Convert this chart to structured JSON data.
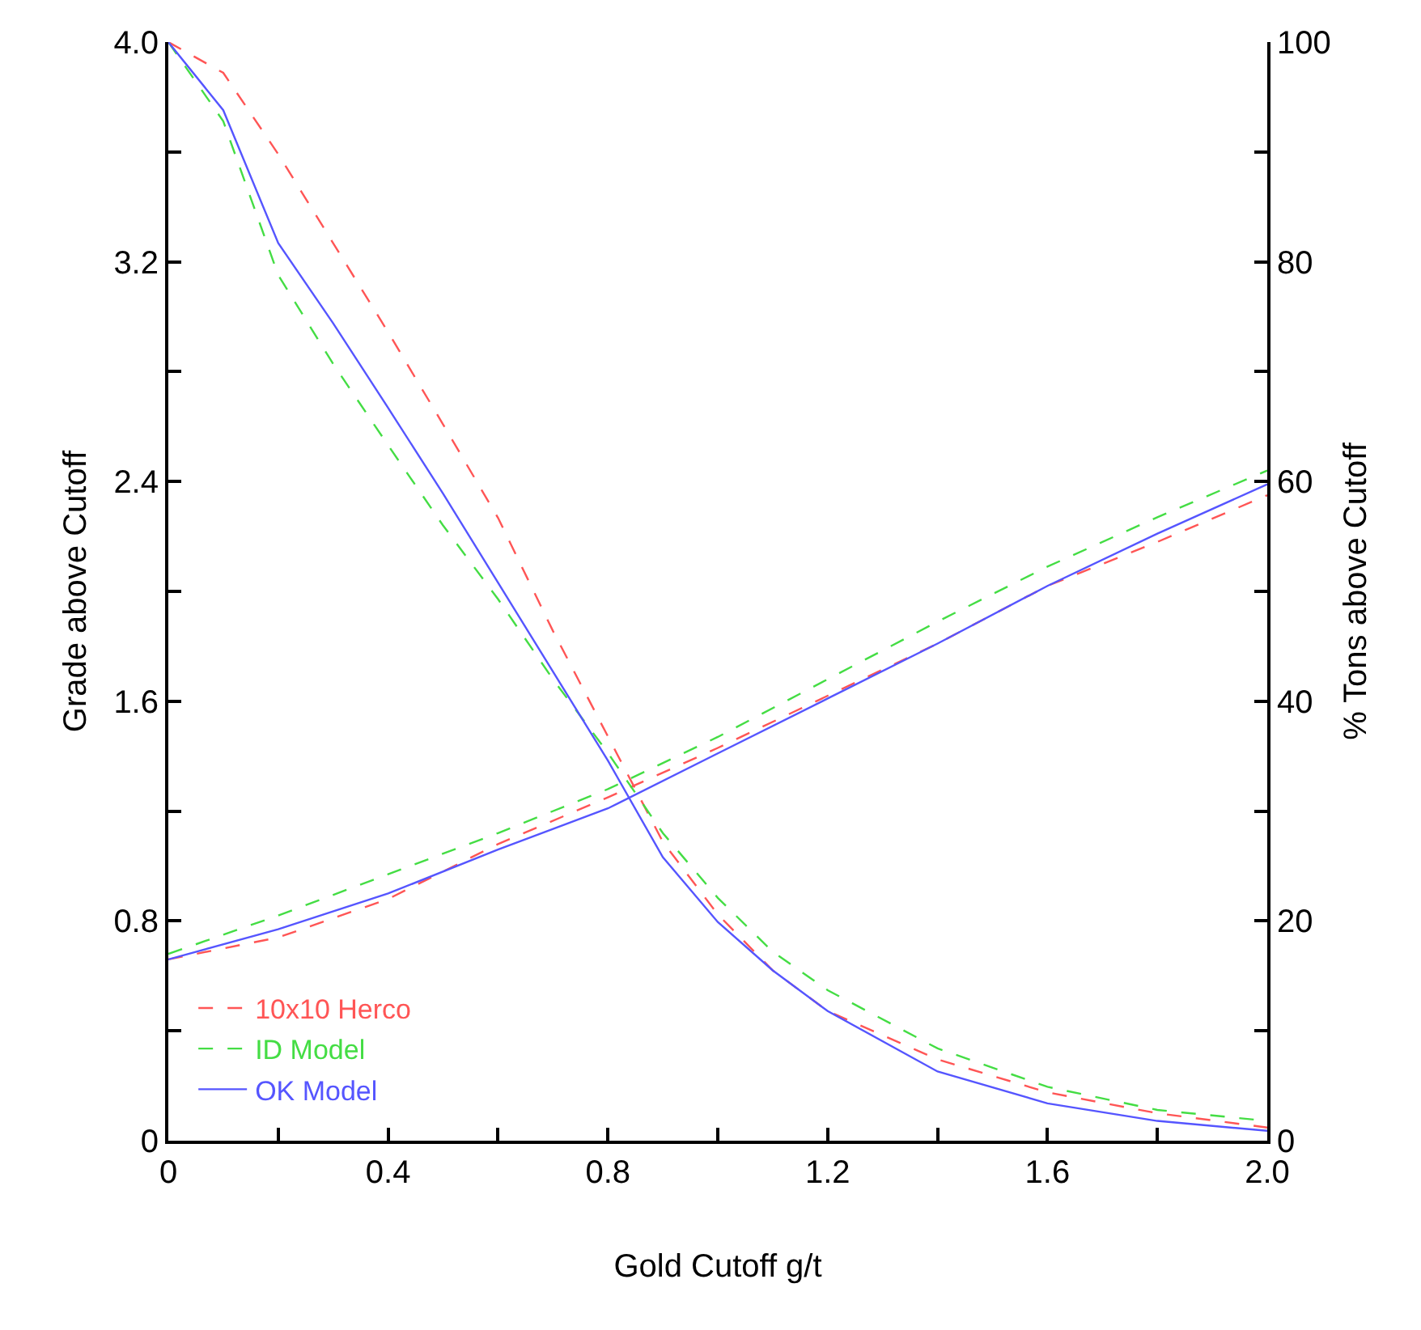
{
  "chart_data": {
    "type": "line",
    "xlabel": "Gold Cutoff g/t",
    "ylabel": "Grade above Cutoff",
    "y2label": "% Tons above Cutoff",
    "xlim": [
      0,
      2
    ],
    "xticks": [
      0,
      {
        "value": 0.2,
        "label": null
      },
      0.4,
      {
        "value": 0.6,
        "label": null
      },
      0.8,
      {
        "value": 1.0,
        "label": null
      },
      1.2,
      {
        "value": 1.4,
        "label": null
      },
      1.6,
      {
        "value": 1.8,
        "label": null
      },
      {
        "value": 2,
        "label": "2.0"
      }
    ],
    "ylim": [
      0,
      4
    ],
    "yticks": [
      0,
      {
        "value": 0.4,
        "label": null
      },
      0.8,
      {
        "value": 1.2,
        "label": null
      },
      1.6,
      {
        "value": 2.0,
        "label": null
      },
      2.4,
      {
        "value": 2.8,
        "label": null
      },
      3.2,
      {
        "value": 3.6,
        "label": null
      },
      {
        "value": 4,
        "label": "4.0"
      }
    ],
    "y2lim": [
      0,
      100
    ],
    "y2ticks": [
      0,
      {
        "value": 10,
        "label": null
      },
      20,
      {
        "value": 30,
        "label": null
      },
      40,
      {
        "value": 50,
        "label": null
      },
      60,
      {
        "value": 70,
        "label": null
      },
      80,
      {
        "value": 90,
        "label": null
      },
      100
    ],
    "grid": false,
    "legend": "bottom left",
    "marker": "none",
    "series": [
      {
        "name": "10x10 Herco",
        "color": "#ff5555",
        "line_style": "dashed",
        "x": [
          0,
          0.2,
          0.4,
          0.6,
          0.8,
          1.0,
          1.2,
          1.4,
          1.6,
          1.8,
          2.0
        ],
        "values": [
          0.66,
          0.74,
          0.88,
          1.08,
          1.25,
          1.43,
          1.62,
          1.81,
          2.02,
          2.18,
          2.35
        ]
      },
      {
        "name": "ID Model",
        "color": "#44dd44",
        "line_style": "dashed",
        "x": [
          0,
          0.2,
          0.4,
          0.6,
          0.8,
          1.0,
          1.2,
          1.4,
          1.6,
          1.8,
          2.0
        ],
        "values": [
          0.68,
          0.82,
          0.97,
          1.12,
          1.28,
          1.47,
          1.68,
          1.89,
          2.09,
          2.27,
          2.44
        ]
      },
      {
        "name": "OK Model",
        "color": "#5555ff",
        "line_style": "solid",
        "x": [
          0,
          0.2,
          0.4,
          0.6,
          0.8,
          1.0,
          1.2,
          1.4,
          1.6,
          1.8,
          2.0
        ],
        "values": [
          0.66,
          0.77,
          0.9,
          1.06,
          1.21,
          1.41,
          1.61,
          1.81,
          2.02,
          2.21,
          2.39
        ]
      },
      {
        "color": "#ff5555",
        "line_style": "dashed",
        "axis": "y2",
        "x": [
          0,
          0.1,
          0.2,
          0.3,
          0.4,
          0.5,
          0.6,
          0.7,
          0.8,
          0.9,
          1.0,
          1.1,
          1.2,
          1.4,
          1.6,
          1.8,
          2.0
        ],
        "values": [
          100,
          97.2,
          89.8,
          81.7,
          73.6,
          65.2,
          56.7,
          46.4,
          36.8,
          27.2,
          20.6,
          15.5,
          11.8,
          7.4,
          4.4,
          2.5,
          1.2
        ]
      },
      {
        "color": "#44dd44",
        "line_style": "dashed",
        "axis": "y2",
        "x": [
          0,
          0.1,
          0.2,
          0.3,
          0.4,
          0.5,
          0.6,
          0.7,
          0.8,
          0.9,
          1.0,
          1.1,
          1.2,
          1.4,
          1.6,
          1.8,
          2.0
        ],
        "values": [
          100,
          92.8,
          78.8,
          70.7,
          63.3,
          56.0,
          49.3,
          42.0,
          35.3,
          28.0,
          22.1,
          17.2,
          13.7,
          8.4,
          4.9,
          2.8,
          1.8
        ]
      },
      {
        "color": "#5555ff",
        "line_style": "solid",
        "axis": "y2",
        "x": [
          0,
          0.1,
          0.2,
          0.3,
          0.4,
          0.5,
          0.6,
          0.7,
          0.8,
          0.9,
          1.0,
          1.1,
          1.2,
          1.4,
          1.6,
          1.8,
          2.0
        ],
        "values": [
          100,
          93.8,
          81.7,
          74.4,
          66.7,
          58.9,
          50.8,
          42.7,
          34.6,
          25.8,
          19.9,
          15.5,
          11.8,
          6.3,
          3.4,
          1.8,
          0.9
        ]
      }
    ]
  }
}
